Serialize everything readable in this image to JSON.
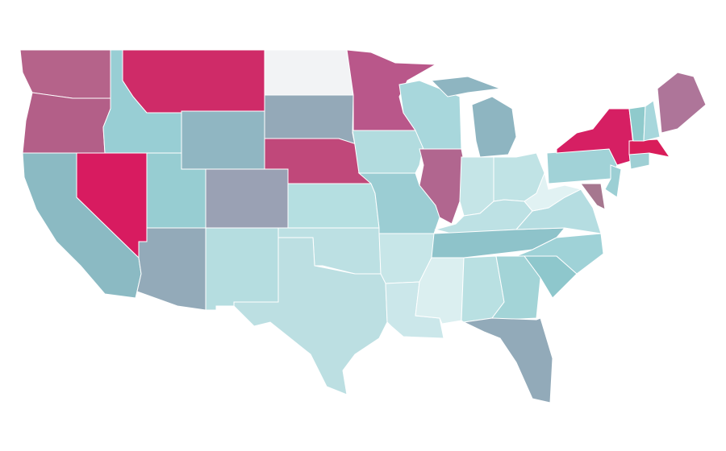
{
  "map": {
    "border_color": "#ffffff",
    "regions": [
      {
        "color": "#b5638a"
      },
      {
        "color": "#b35f88"
      },
      {
        "color": "#8bbac3"
      },
      {
        "color": "#d81b60"
      },
      {
        "color": "#98ced4"
      },
      {
        "color": "#cf2b68"
      },
      {
        "color": "#90b6c2"
      },
      {
        "color": "#97cdd2"
      },
      {
        "color": "#93aab9"
      },
      {
        "color": "#9aa1b4"
      },
      {
        "color": "#b5dde0"
      },
      {
        "color": "#f2f3f5"
      },
      {
        "color": "#94a9b8"
      },
      {
        "color": "#c0487a"
      },
      {
        "color": "#b5dfe1"
      },
      {
        "color": "#bce0e3"
      },
      {
        "color": "#bcdfe2"
      },
      {
        "color": "#b9578a"
      },
      {
        "color": "#b2dcdf"
      },
      {
        "color": "#9bcdd3"
      },
      {
        "color": "#c7e6e8"
      },
      {
        "color": "#cbe7ea"
      },
      {
        "color": "#a8d7dc"
      },
      {
        "color": "#b1668f"
      },
      {
        "color": "#8eb5c1"
      },
      {
        "color": "#c5e5e7"
      },
      {
        "color": "#c0e3e5"
      },
      {
        "color": "#bde1e4"
      },
      {
        "color": "#8ec3ca"
      },
      {
        "color": "#dbeff0"
      },
      {
        "color": "#b9e0e2"
      },
      {
        "color": "#a3d4d7"
      },
      {
        "color": "#92aab9"
      },
      {
        "color": "#8ec7cc"
      },
      {
        "color": "#9fd2d7"
      },
      {
        "color": "#b5dde1"
      },
      {
        "color": "#e1f2f3"
      },
      {
        "color": "#a1d2d7"
      },
      {
        "color": "#d61f63"
      },
      {
        "color": "#9ccfd4"
      },
      {
        "color": "#a6778f"
      },
      {
        "color": "#9fcfd4"
      },
      {
        "color": "#d91d5a"
      },
      {
        "color": "#8fcacc"
      },
      {
        "color": "#a7d7dc"
      },
      {
        "color": "#ae7599"
      }
    ]
  }
}
